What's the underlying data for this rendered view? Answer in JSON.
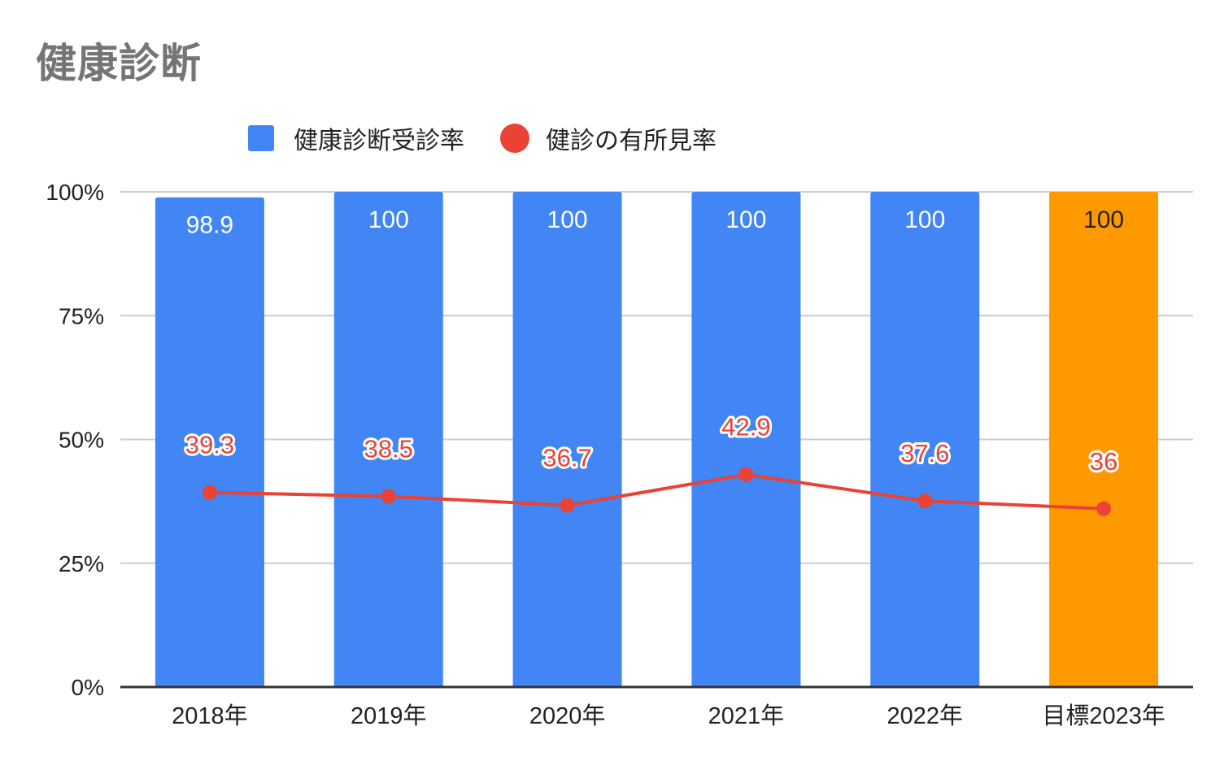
{
  "chart_data": {
    "type": "bar",
    "title": "健康診断",
    "categories": [
      "2018年",
      "2019年",
      "2020年",
      "2021年",
      "2022年",
      "目標2023年"
    ],
    "series": [
      {
        "name": "健康診断受診率",
        "type": "bar",
        "color": "#4285f4",
        "highlight_color": "#ff9900",
        "highlight_index": 5,
        "values": [
          98.9,
          100,
          100,
          100,
          100,
          100
        ],
        "labels": [
          "98.9",
          "100",
          "100",
          "100",
          "100",
          "100"
        ]
      },
      {
        "name": "健診の有所見率",
        "type": "line",
        "color": "#ea4335",
        "values": [
          39.3,
          38.5,
          36.7,
          42.9,
          37.6,
          36
        ],
        "labels": [
          "39.3",
          "38.5",
          "36.7",
          "42.9",
          "37.6",
          "36"
        ]
      }
    ],
    "yticks": [
      "0%",
      "25%",
      "50%",
      "75%",
      "100%"
    ],
    "ylim": [
      0,
      100
    ],
    "xlabel": "",
    "ylabel": "",
    "grid": true,
    "legend": "top"
  }
}
